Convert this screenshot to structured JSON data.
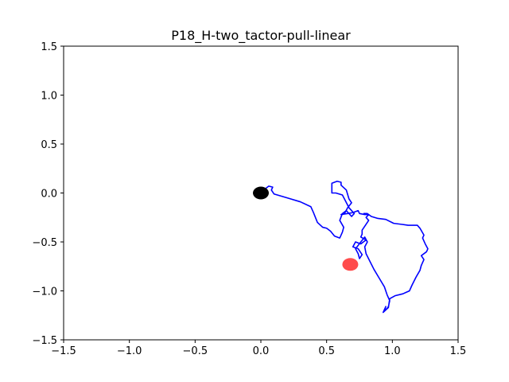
{
  "chart_data": {
    "type": "line",
    "title": "P18_H-two_tactor-pull-linear",
    "xlabel": "",
    "ylabel": "",
    "xlim": [
      -1.5,
      1.5
    ],
    "ylim": [
      -1.5,
      1.5
    ],
    "grid": false,
    "xticks": [
      -1.5,
      -1.0,
      -0.5,
      0.0,
      0.5,
      1.0,
      1.5
    ],
    "yticks": [
      -1.5,
      -1.0,
      -0.5,
      0.0,
      0.5,
      1.0,
      1.5
    ],
    "xtick_labels": [
      "−1.5",
      "−1.0",
      "−0.5",
      "0.0",
      "0.5",
      "1.0",
      "1.5"
    ],
    "ytick_labels": [
      "−1.5",
      "−1.0",
      "−0.5",
      "0.0",
      "0.5",
      "1.0",
      "1.5"
    ],
    "series": [
      {
        "color": "#0000ff",
        "points": [
          [
            0.0,
            0.0
          ],
          [
            0.03,
            0.04
          ],
          [
            0.06,
            0.07
          ],
          [
            0.09,
            0.06
          ],
          [
            0.08,
            0.03
          ],
          [
            0.1,
            -0.01
          ],
          [
            0.2,
            -0.05
          ],
          [
            0.3,
            -0.09
          ],
          [
            0.38,
            -0.14
          ],
          [
            0.4,
            -0.2
          ],
          [
            0.43,
            -0.3
          ],
          [
            0.47,
            -0.35
          ],
          [
            0.5,
            -0.36
          ],
          [
            0.53,
            -0.39
          ],
          [
            0.56,
            -0.44
          ],
          [
            0.6,
            -0.46
          ],
          [
            0.62,
            -0.4
          ],
          [
            0.63,
            -0.35
          ],
          [
            0.6,
            -0.28
          ],
          [
            0.62,
            -0.21
          ],
          [
            0.65,
            -0.18
          ],
          [
            0.69,
            -0.24
          ],
          [
            0.71,
            -0.21
          ],
          [
            0.67,
            -0.15
          ],
          [
            0.62,
            -0.02
          ],
          [
            0.57,
            0.0
          ],
          [
            0.54,
            0.0
          ],
          [
            0.54,
            0.1
          ],
          [
            0.58,
            0.12
          ],
          [
            0.61,
            0.11
          ],
          [
            0.61,
            0.08
          ],
          [
            0.65,
            0.03
          ],
          [
            0.67,
            -0.06
          ],
          [
            0.69,
            -0.1
          ],
          [
            0.66,
            -0.15
          ],
          [
            0.64,
            -0.2
          ],
          [
            0.61,
            -0.22
          ],
          [
            0.66,
            -0.21
          ],
          [
            0.7,
            -0.2
          ],
          [
            0.74,
            -0.18
          ],
          [
            0.75,
            -0.21
          ],
          [
            0.79,
            -0.22
          ],
          [
            0.82,
            -0.22
          ],
          [
            0.8,
            -0.25
          ],
          [
            0.82,
            -0.28
          ],
          [
            0.79,
            -0.34
          ],
          [
            0.77,
            -0.38
          ],
          [
            0.77,
            -0.42
          ],
          [
            0.76,
            -0.45
          ],
          [
            0.8,
            -0.48
          ],
          [
            0.76,
            -0.52
          ],
          [
            0.72,
            -0.5
          ],
          [
            0.7,
            -0.55
          ],
          [
            0.74,
            -0.57
          ],
          [
            0.77,
            -0.63
          ],
          [
            0.75,
            -0.67
          ],
          [
            0.74,
            -0.62
          ],
          [
            0.72,
            -0.57
          ],
          [
            0.76,
            -0.5
          ],
          [
            0.79,
            -0.45
          ],
          [
            0.81,
            -0.5
          ],
          [
            0.79,
            -0.55
          ],
          [
            0.8,
            -0.62
          ],
          [
            0.83,
            -0.7
          ],
          [
            0.86,
            -0.78
          ],
          [
            0.9,
            -0.87
          ],
          [
            0.94,
            -0.96
          ],
          [
            0.96,
            -1.04
          ],
          [
            0.98,
            -1.1
          ],
          [
            0.97,
            -1.16
          ],
          [
            0.96,
            -1.18
          ],
          [
            0.94,
            -1.2
          ],
          [
            0.95,
            -1.16
          ],
          [
            0.93,
            -1.22
          ],
          [
            0.97,
            -1.17
          ],
          [
            0.98,
            -1.08
          ],
          [
            1.02,
            -1.05
          ],
          [
            1.08,
            -1.03
          ],
          [
            1.13,
            -1.0
          ],
          [
            1.15,
            -0.94
          ],
          [
            1.18,
            -0.86
          ],
          [
            1.21,
            -0.79
          ],
          [
            1.22,
            -0.74
          ],
          [
            1.24,
            -0.68
          ],
          [
            1.22,
            -0.64
          ],
          [
            1.26,
            -0.6
          ],
          [
            1.27,
            -0.57
          ],
          [
            1.25,
            -0.52
          ],
          [
            1.23,
            -0.46
          ],
          [
            1.24,
            -0.43
          ],
          [
            1.21,
            -0.36
          ],
          [
            1.19,
            -0.33
          ],
          [
            1.12,
            -0.33
          ],
          [
            1.07,
            -0.32
          ],
          [
            1.01,
            -0.31
          ],
          [
            0.95,
            -0.27
          ],
          [
            0.89,
            -0.26
          ],
          [
            0.84,
            -0.24
          ],
          [
            0.81,
            -0.21
          ],
          [
            0.78,
            -0.21
          ]
        ]
      }
    ],
    "markers": [
      {
        "x": 0.0,
        "y": 0.0,
        "color": "#000000"
      },
      {
        "x": 0.68,
        "y": -0.73,
        "color": "#ff0000",
        "opacity": 0.7
      }
    ]
  }
}
